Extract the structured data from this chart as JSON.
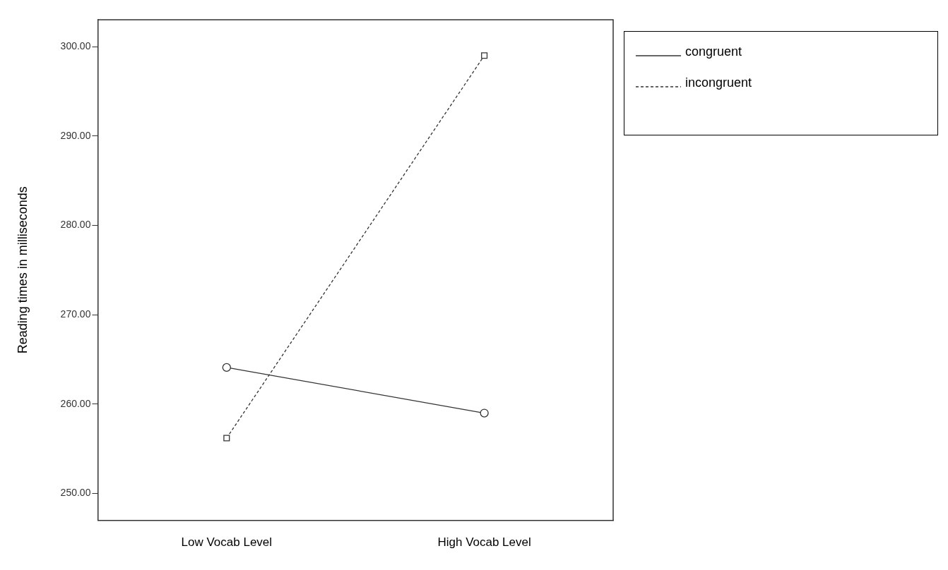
{
  "chart_data": {
    "type": "line",
    "ylabel": "Reading times in milliseconds",
    "categories": [
      "Low Vocab Level",
      "High Vocab Level"
    ],
    "series": [
      {
        "name": "congruent",
        "color": "#333333",
        "values": [
          264.1,
          259.0
        ],
        "marker": "circle",
        "line_style": "solid"
      },
      {
        "name": "incongruent",
        "color": "#333333",
        "values": [
          256.2,
          299.0
        ],
        "marker": "square",
        "line_style": "dashed"
      }
    ],
    "ylim": [
      247,
      303
    ],
    "yticks": [
      {
        "value": 250,
        "label": "250.00"
      },
      {
        "value": 260,
        "label": "260.00"
      },
      {
        "value": 270,
        "label": "270.00"
      },
      {
        "value": 280,
        "label": "280.00"
      },
      {
        "value": 290,
        "label": "290.00"
      },
      {
        "value": 300,
        "label": "300.00"
      }
    ],
    "grid": false,
    "legend": "top right"
  }
}
